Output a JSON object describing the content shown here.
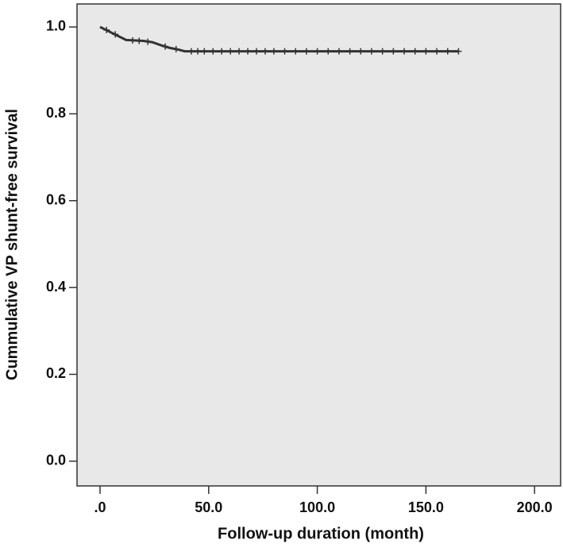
{
  "chart_data": {
    "type": "line",
    "x_label": "Follow-up duration (month)",
    "y_label": "Cummulative VP shunt-free survival",
    "x": [
      0,
      2,
      4,
      6,
      8,
      10,
      12,
      20,
      24,
      28,
      32,
      36,
      39,
      165
    ],
    "values": [
      1.0,
      0.995,
      0.99,
      0.985,
      0.98,
      0.975,
      0.97,
      0.968,
      0.965,
      0.958,
      0.952,
      0.948,
      0.944,
      0.944
    ],
    "color": "#333333",
    "censored": {
      "x": [
        3,
        7,
        15,
        18,
        22,
        30,
        35,
        42,
        45,
        48,
        52,
        56,
        60,
        64,
        68,
        72,
        76,
        80,
        85,
        90,
        95,
        100,
        105,
        110,
        115,
        120,
        125,
        130,
        135,
        140,
        145,
        150,
        155,
        160,
        165
      ],
      "values": [
        0.993,
        0.983,
        0.969,
        0.968,
        0.966,
        0.955,
        0.949,
        0.944,
        0.944,
        0.944,
        0.944,
        0.944,
        0.944,
        0.944,
        0.944,
        0.944,
        0.944,
        0.944,
        0.944,
        0.944,
        0.944,
        0.944,
        0.944,
        0.944,
        0.944,
        0.944,
        0.944,
        0.944,
        0.944,
        0.944,
        0.944,
        0.944,
        0.944,
        0.944,
        0.944
      ]
    },
    "xlim": [
      -10.6,
      212
    ],
    "ylim": [
      -0.057,
      1.053
    ],
    "xticks": [
      {
        "value": 0,
        "label": ".0"
      },
      {
        "value": 50,
        "label": "50.0"
      },
      {
        "value": 100,
        "label": "100.0"
      },
      {
        "value": 150,
        "label": "150.0"
      },
      {
        "value": 200,
        "label": "200.0"
      }
    ],
    "yticks": [
      {
        "value": 0,
        "label": "0.0"
      },
      {
        "value": 0.2,
        "label": "0.2"
      },
      {
        "value": 0.4,
        "label": "0.4"
      },
      {
        "value": 0.6,
        "label": "0.6"
      },
      {
        "value": 0.8,
        "label": "0.8"
      },
      {
        "value": 1.0,
        "label": "1.0"
      }
    ]
  }
}
